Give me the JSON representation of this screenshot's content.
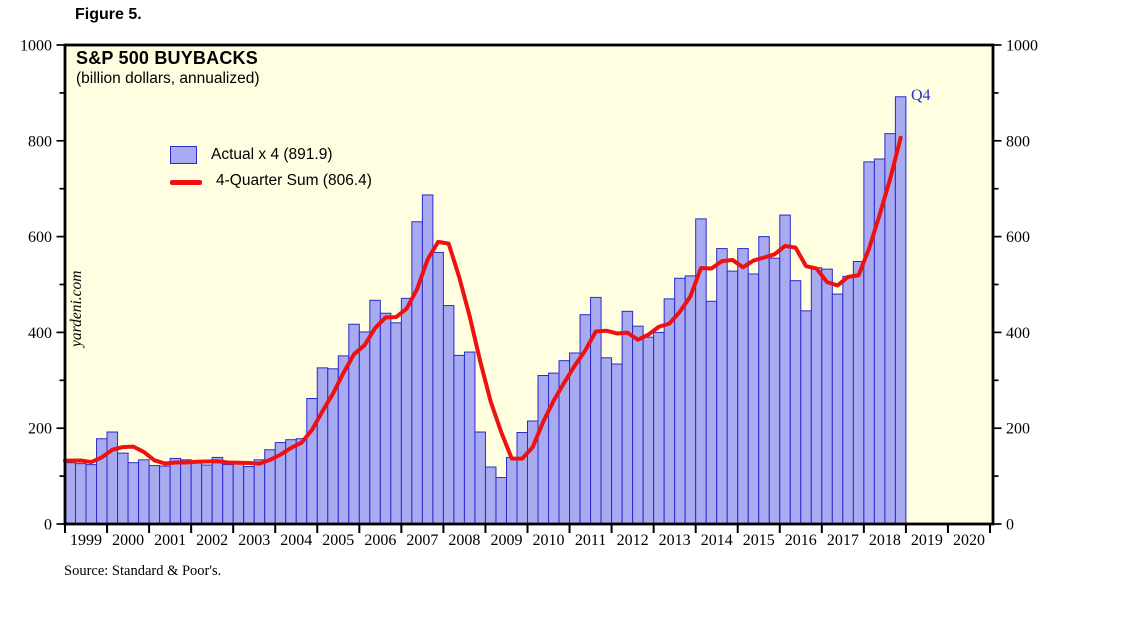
{
  "figure_label": "Figure 5.",
  "chart": {
    "title": "S&P 500 BUYBACKS",
    "subtitle": "(billion dollars, annualized)",
    "watermark": "yardeni.com",
    "legend": {
      "bar_label": "Actual x 4 (891.9)",
      "line_label": "4-Quarter Sum (806.4)"
    },
    "annotation_q4": "Q4",
    "source": "Source: Standard & Poor's."
  },
  "colors": {
    "page_bg": "#ffffff",
    "plot_bg": "#fffee1",
    "bar_fill": "#a9abf0",
    "bar_border": "#2a2ace",
    "line_red": "#ee1111",
    "axis_black": "#000000",
    "annotation_blue": "#2230cc"
  },
  "chart_data": {
    "type": "bar+line",
    "title": "S&P 500 BUYBACKS",
    "subtitle": "(billion dollars, annualized)",
    "ylabel": "billion dollars, annualized",
    "ylim": [
      0,
      1000
    ],
    "y_major_ticks": [
      0,
      200,
      400,
      600,
      800,
      1000
    ],
    "y_minor_step": 100,
    "grid": false,
    "legend_position": "top-left-inside",
    "x_axis_years": [
      1999,
      2000,
      2001,
      2002,
      2003,
      2004,
      2005,
      2006,
      2007,
      2008,
      2009,
      2010,
      2011,
      2012,
      2013,
      2014,
      2015,
      2016,
      2017,
      2018,
      2019,
      2020
    ],
    "categories": [
      "1999 Q1",
      "1999 Q2",
      "1999 Q3",
      "1999 Q4",
      "2000 Q1",
      "2000 Q2",
      "2000 Q3",
      "2000 Q4",
      "2001 Q1",
      "2001 Q2",
      "2001 Q3",
      "2001 Q4",
      "2002 Q1",
      "2002 Q2",
      "2002 Q3",
      "2002 Q4",
      "2003 Q1",
      "2003 Q2",
      "2003 Q3",
      "2003 Q4",
      "2004 Q1",
      "2004 Q2",
      "2004 Q3",
      "2004 Q4",
      "2005 Q1",
      "2005 Q2",
      "2005 Q3",
      "2005 Q4",
      "2006 Q1",
      "2006 Q2",
      "2006 Q3",
      "2006 Q4",
      "2007 Q1",
      "2007 Q2",
      "2007 Q3",
      "2007 Q4",
      "2008 Q1",
      "2008 Q2",
      "2008 Q3",
      "2008 Q4",
      "2009 Q1",
      "2009 Q2",
      "2009 Q3",
      "2009 Q4",
      "2010 Q1",
      "2010 Q2",
      "2010 Q3",
      "2010 Q4",
      "2011 Q1",
      "2011 Q2",
      "2011 Q3",
      "2011 Q4",
      "2012 Q1",
      "2012 Q2",
      "2012 Q3",
      "2012 Q4",
      "2013 Q1",
      "2013 Q2",
      "2013 Q3",
      "2013 Q4",
      "2014 Q1",
      "2014 Q2",
      "2014 Q3",
      "2014 Q4",
      "2015 Q1",
      "2015 Q2",
      "2015 Q3",
      "2015 Q4",
      "2016 Q1",
      "2016 Q2",
      "2016 Q3",
      "2016 Q4",
      "2017 Q1",
      "2017 Q2",
      "2017 Q3",
      "2017 Q4",
      "2018 Q1",
      "2018 Q2",
      "2018 Q3",
      "2018 Q4"
    ],
    "series": [
      {
        "name": "Actual x 4",
        "type": "bar",
        "color": "#a9abf0",
        "border_color": "#2a2ace",
        "final_value": 891.9,
        "values": [
          128,
          126,
          124,
          178,
          192,
          148,
          128,
          134,
          122,
          121,
          137,
          134,
          128,
          123,
          139,
          124,
          126,
          120,
          134,
          155,
          170,
          176,
          178,
          262,
          326,
          324,
          351,
          417,
          401,
          467,
          440,
          420,
          471,
          631,
          687,
          567,
          456,
          352,
          359,
          192,
          119,
          97,
          139,
          191,
          215,
          310,
          315,
          341,
          357,
          437,
          473,
          347,
          334,
          444,
          413,
          390,
          400,
          470,
          513,
          518,
          637,
          465,
          575,
          528,
          575,
          522,
          600,
          555,
          645,
          508,
          445,
          535,
          532,
          480,
          517,
          548,
          756,
          762,
          815,
          891.9
        ]
      },
      {
        "name": "4-Quarter Sum",
        "type": "line",
        "color": "#ee1111",
        "final_value": 806.4,
        "values": [
          132.3,
          132.5,
          129.3,
          139.0,
          155.0,
          160.5,
          161.5,
          150.5,
          133.0,
          126.3,
          128.5,
          128.5,
          130.0,
          130.5,
          131.0,
          128.5,
          128.0,
          127.3,
          126.0,
          133.8,
          144.8,
          158.8,
          169.8,
          196.5,
          235.5,
          272.5,
          315.8,
          354.5,
          373.3,
          409.0,
          431.3,
          432.0,
          449.5,
          490.5,
          552.3,
          589.0,
          585.3,
          515.5,
          433.5,
          339.8,
          255.5,
          191.8,
          136.8,
          136.5,
          160.5,
          213.8,
          257.8,
          295.3,
          330.8,
          362.5,
          402.0,
          403.5,
          397.8,
          399.5,
          384.5,
          395.3,
          411.8,
          418.3,
          443.3,
          475.3,
          534.5,
          533.3,
          548.8,
          551.3,
          535.8,
          550.0,
          556.3,
          563.0,
          580.5,
          577.0,
          538.3,
          533.3,
          505.0,
          498.0,
          516.0,
          519.3,
          575.3,
          645.8,
          720.3,
          806.4
        ]
      }
    ],
    "annotation": {
      "text": "Q4",
      "quarter": "2018 Q4",
      "color": "#2230cc"
    }
  }
}
